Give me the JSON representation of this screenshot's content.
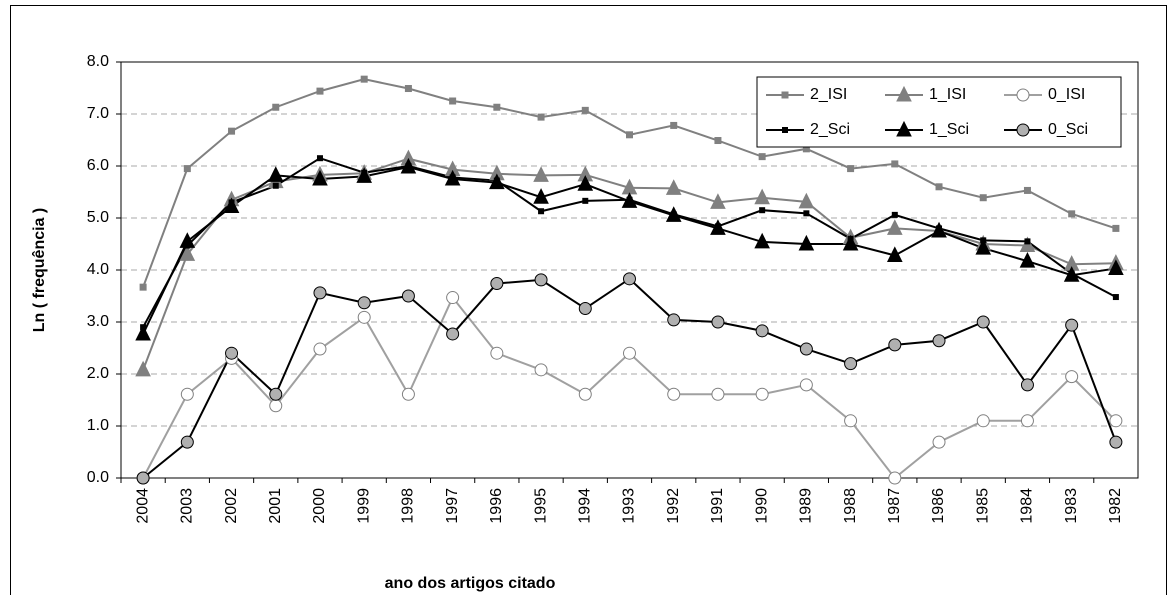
{
  "chart_data": {
    "type": "line",
    "xlabel": "ano dos artigos citado",
    "ylabel": "Ln ( frequência )",
    "categories": [
      "2004",
      "2003",
      "2002",
      "2001",
      "2000",
      "1999",
      "1998",
      "1997",
      "1996",
      "1995",
      "1994",
      "1993",
      "1992",
      "1991",
      "1990",
      "1989",
      "1988",
      "1987",
      "1986",
      "1985",
      "1984",
      "1983",
      "1982"
    ],
    "ylim": [
      0,
      8
    ],
    "yticks": [
      {
        "value": 0,
        "label": "0.0"
      },
      {
        "value": 1,
        "label": "1.0"
      },
      {
        "value": 2,
        "label": "2.0"
      },
      {
        "value": 3,
        "label": "3.0"
      },
      {
        "value": 4,
        "label": "4.0"
      },
      {
        "value": 5,
        "label": "5.0"
      },
      {
        "value": 6,
        "label": "6.0"
      },
      {
        "value": 7,
        "label": "7.0"
      },
      {
        "value": 8,
        "label": "8.0"
      }
    ],
    "grid": true,
    "legend": "upper right",
    "series": [
      {
        "name": "2_ISI",
        "color": "#808080",
        "marker": "square",
        "fill": "#808080",
        "values": [
          3.67,
          5.95,
          6.67,
          7.13,
          7.44,
          7.67,
          7.49,
          7.25,
          7.13,
          6.94,
          7.07,
          6.6,
          6.78,
          6.49,
          6.18,
          6.33,
          5.95,
          6.04,
          5.6,
          5.39,
          5.53,
          5.08,
          4.8
        ]
      },
      {
        "name": "1_ISI",
        "color": "#808080",
        "marker": "triangle",
        "fill": "#808080",
        "values": [
          2.08,
          4.3,
          5.35,
          5.7,
          5.83,
          5.86,
          6.14,
          5.93,
          5.85,
          5.82,
          5.83,
          5.58,
          5.57,
          5.3,
          5.39,
          5.31,
          4.62,
          4.8,
          4.75,
          4.5,
          4.47,
          4.11,
          4.13
        ]
      },
      {
        "name": "0_ISI",
        "color": "#a0a0a0",
        "marker": "circle",
        "fill": "#ffffff",
        "values": [
          0,
          1.61,
          2.3,
          1.39,
          2.48,
          3.09,
          1.61,
          3.47,
          2.4,
          2.08,
          1.61,
          2.4,
          1.61,
          1.61,
          1.61,
          1.79,
          1.1,
          0,
          0.69,
          1.1,
          1.1,
          1.95,
          1.1
        ]
      },
      {
        "name": "2_Sci",
        "color": "#000000",
        "marker": "square",
        "fill": "#000000",
        "values": [
          2.9,
          4.47,
          5.3,
          5.62,
          6.15,
          5.87,
          6.0,
          5.78,
          5.72,
          5.13,
          5.33,
          5.35,
          5.07,
          4.84,
          5.15,
          5.09,
          4.6,
          5.06,
          4.8,
          4.57,
          4.55,
          3.93,
          3.48
        ]
      },
      {
        "name": "1_Sci",
        "color": "#000000",
        "marker": "triangle",
        "fill": "#000000",
        "values": [
          2.77,
          4.55,
          5.22,
          5.82,
          5.75,
          5.8,
          5.98,
          5.75,
          5.68,
          5.4,
          5.65,
          5.32,
          5.05,
          4.8,
          4.54,
          4.5,
          4.5,
          4.28,
          4.75,
          4.42,
          4.17,
          3.9,
          4.03
        ]
      },
      {
        "name": "0_Sci",
        "color": "#000000",
        "marker": "circle",
        "fill": "#b0b0b0",
        "values": [
          0,
          0.69,
          2.4,
          1.61,
          3.56,
          3.37,
          3.5,
          2.77,
          3.74,
          3.81,
          3.26,
          3.83,
          3.04,
          3.0,
          2.83,
          2.48,
          2.2,
          2.56,
          2.64,
          3.0,
          1.79,
          2.94,
          0.69
        ]
      }
    ]
  }
}
